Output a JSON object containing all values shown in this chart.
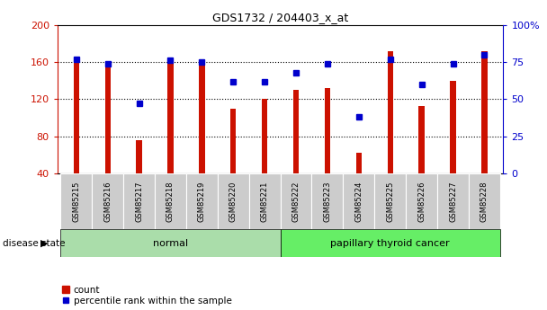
{
  "title": "GDS1732 / 204403_x_at",
  "samples": [
    "GSM85215",
    "GSM85216",
    "GSM85217",
    "GSM85218",
    "GSM85219",
    "GSM85220",
    "GSM85221",
    "GSM85222",
    "GSM85223",
    "GSM85224",
    "GSM85225",
    "GSM85226",
    "GSM85227",
    "GSM85228"
  ],
  "counts": [
    163,
    155,
    76,
    161,
    161,
    110,
    120,
    130,
    132,
    62,
    172,
    113,
    140,
    172
  ],
  "percentiles": [
    77,
    74,
    47,
    76,
    75,
    62,
    62,
    68,
    74,
    38,
    77,
    60,
    74,
    80
  ],
  "normal_indices": [
    0,
    1,
    2,
    3,
    4,
    5,
    6
  ],
  "cancer_indices": [
    7,
    8,
    9,
    10,
    11,
    12,
    13
  ],
  "y_min": 40,
  "y_max": 200,
  "y_ticks": [
    40,
    80,
    120,
    160,
    200
  ],
  "right_y_ticks": [
    0,
    25,
    50,
    75,
    100
  ],
  "bar_color": "#cc1100",
  "dot_color": "#0000cc",
  "normal_bg": "#aaddaa",
  "cancer_bg": "#66ee66",
  "label_bg": "#cccccc",
  "legend_count": "count",
  "legend_pct": "percentile rank within the sample",
  "disease_label": "disease state",
  "normal_label": "normal",
  "cancer_label": "papillary thyroid cancer"
}
